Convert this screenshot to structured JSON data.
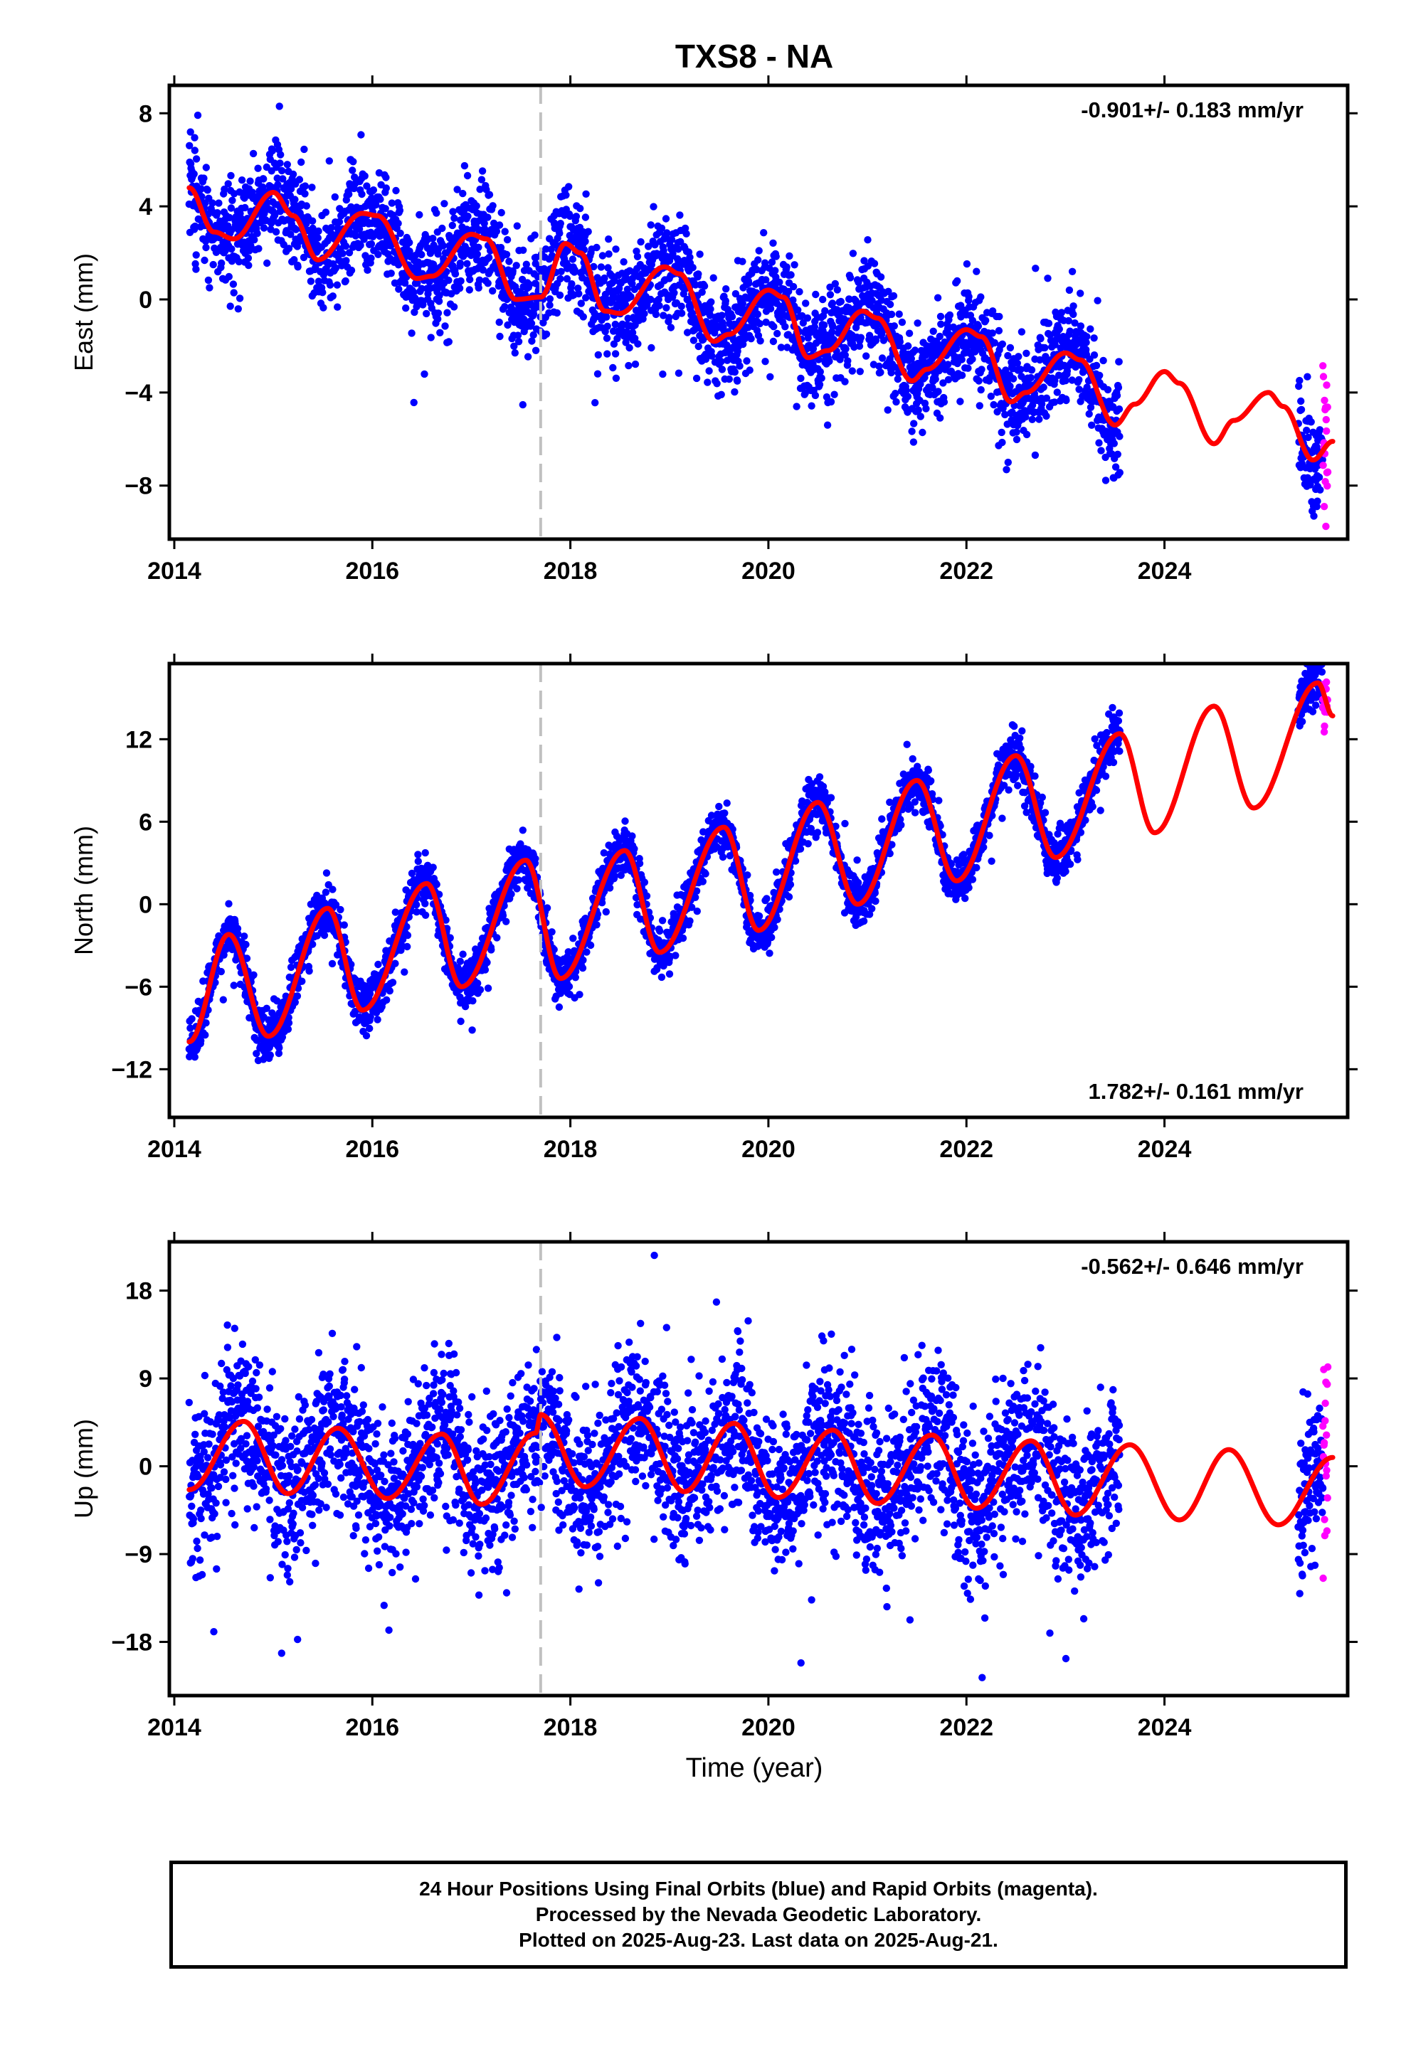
{
  "figure": {
    "title": "TXS8 - NA",
    "xlabel": "Time (year)",
    "caption_lines": [
      "24 Hour Positions Using Final Orbits (blue) and Rapid Orbits (magenta).",
      "Processed by the Nevada Geodetic Laboratory.",
      "Plotted on 2025-Aug-23. Last data on 2025-Aug-21."
    ],
    "colors": {
      "final_orbits": "#0000ff",
      "rapid_orbits": "#ff00ff",
      "model_fit": "#ff0000",
      "equipment_change_line": "#c0c0c0",
      "axes": "#000000"
    }
  },
  "chart_data": [
    {
      "type": "scatter",
      "panel": "east",
      "ylabel": "East (mm)",
      "rate_annotation": "-0.901+/- 0.183 mm/yr",
      "rate_position": "top-right",
      "xlim": [
        2013.95,
        2025.85
      ],
      "ylim": [
        -10.3,
        9.2
      ],
      "xticks": [
        2014,
        2016,
        2018,
        2020,
        2022,
        2024
      ],
      "yticks": [
        8,
        4,
        0,
        -4,
        -8
      ],
      "ytick_labels": [
        "8",
        "4",
        "0",
        "−4",
        "−8"
      ],
      "grid": false,
      "equipment_change_year": 2017.7,
      "rate_mm_per_yr": -0.901,
      "fit": {
        "t0": 2019.75,
        "offset": -0.4,
        "annual": [
          0.8,
          1.25
        ],
        "semiannual": [
          0.35,
          0.25
        ],
        "noise": 1.1,
        "knots": [
          [
            2014.15,
            4.8
          ],
          [
            2014.4,
            2.9
          ],
          [
            2014.6,
            2.6
          ],
          [
            2015.0,
            4.6
          ],
          [
            2015.2,
            3.6
          ],
          [
            2015.45,
            1.7
          ],
          [
            2015.9,
            3.7
          ],
          [
            2016.05,
            3.6
          ],
          [
            2016.45,
            0.9
          ],
          [
            2016.6,
            1.0
          ],
          [
            2017.0,
            2.8
          ],
          [
            2017.15,
            2.6
          ],
          [
            2017.45,
            0.0
          ],
          [
            2017.7,
            0.1
          ],
          [
            2017.95,
            2.4
          ],
          [
            2018.1,
            2.0
          ],
          [
            2018.35,
            -0.5
          ],
          [
            2018.5,
            -0.6
          ],
          [
            2018.95,
            1.4
          ],
          [
            2019.1,
            1.1
          ],
          [
            2019.45,
            -1.8
          ],
          [
            2019.6,
            -1.5
          ],
          [
            2020.0,
            0.4
          ],
          [
            2020.15,
            0.1
          ],
          [
            2020.4,
            -2.5
          ],
          [
            2020.6,
            -2.2
          ],
          [
            2020.95,
            -0.5
          ],
          [
            2021.1,
            -0.8
          ],
          [
            2021.45,
            -3.5
          ],
          [
            2021.6,
            -3.0
          ],
          [
            2022.0,
            -1.3
          ],
          [
            2022.15,
            -1.6
          ],
          [
            2022.45,
            -4.4
          ],
          [
            2022.6,
            -4.0
          ],
          [
            2023.0,
            -2.3
          ],
          [
            2023.15,
            -2.6
          ],
          [
            2023.5,
            -5.4
          ],
          [
            2023.7,
            -4.5
          ],
          [
            2024.0,
            -3.1
          ],
          [
            2024.15,
            -3.6
          ],
          [
            2024.5,
            -6.2
          ],
          [
            2024.7,
            -5.2
          ],
          [
            2025.05,
            -4.0
          ],
          [
            2025.2,
            -4.6
          ],
          [
            2025.5,
            -6.9
          ],
          [
            2025.7,
            -6.1
          ]
        ]
      }
    },
    {
      "type": "scatter",
      "panel": "north",
      "ylabel": "North (mm)",
      "rate_annotation": "1.782+/- 0.161 mm/yr",
      "rate_position": "bottom-right",
      "xlim": [
        2013.95,
        2025.85
      ],
      "ylim": [
        -15.5,
        17.5
      ],
      "xticks": [
        2014,
        2016,
        2018,
        2020,
        2022,
        2024
      ],
      "yticks": [
        12,
        6,
        0,
        -6,
        -12
      ],
      "ytick_labels": [
        "12",
        "6",
        "0",
        "−6",
        "−12"
      ],
      "grid": false,
      "equipment_change_year": 2017.7,
      "rate_mm_per_yr": 1.782,
      "fit": {
        "t0": 2019.75,
        "offset": 0.0,
        "annual": [
          -5.8,
          2.7
        ],
        "semiannual": [
          0.0,
          0.0
        ],
        "noise": 0.9,
        "knots": [
          [
            2014.15,
            -10.0
          ],
          [
            2014.55,
            -2.2
          ],
          [
            2014.95,
            -9.6
          ],
          [
            2015.55,
            -0.3
          ],
          [
            2015.9,
            -7.7
          ],
          [
            2016.55,
            1.5
          ],
          [
            2016.9,
            -6.0
          ],
          [
            2017.55,
            3.2
          ],
          [
            2017.9,
            -5.4
          ],
          [
            2018.55,
            3.9
          ],
          [
            2018.9,
            -3.5
          ],
          [
            2019.55,
            5.6
          ],
          [
            2019.9,
            -1.9
          ],
          [
            2020.5,
            7.4
          ],
          [
            2020.9,
            0.0
          ],
          [
            2021.5,
            9.0
          ],
          [
            2021.9,
            1.7
          ],
          [
            2022.5,
            10.8
          ],
          [
            2022.9,
            3.4
          ],
          [
            2023.55,
            12.4
          ],
          [
            2023.9,
            5.2
          ],
          [
            2024.5,
            14.4
          ],
          [
            2024.9,
            7.0
          ],
          [
            2025.55,
            16.1
          ],
          [
            2025.7,
            13.7
          ]
        ]
      }
    },
    {
      "type": "scatter",
      "panel": "up",
      "ylabel": "Up (mm)",
      "rate_annotation": "-0.562+/- 0.646 mm/yr",
      "rate_position": "top-right",
      "xlim": [
        2013.95,
        2025.85
      ],
      "ylim": [
        -23.5,
        23
      ],
      "xticks": [
        2014,
        2016,
        2018,
        2020,
        2022,
        2024
      ],
      "xtick_labels": [
        "2014",
        "2016",
        "2018",
        "2020",
        "2022",
        "2024"
      ],
      "yticks": [
        18,
        9,
        0,
        -9,
        -18
      ],
      "ytick_labels": [
        "18",
        "9",
        "0",
        "−9",
        "−18"
      ],
      "grid": false,
      "equipment_change_year": 2017.7,
      "rate_mm_per_yr": -0.562,
      "fit": {
        "t0": 2019.75,
        "offset": 0.0,
        "annual": [
          -1.5,
          -4.0
        ],
        "semiannual": [
          0.0,
          0.0
        ],
        "noise": 4.0,
        "knots": [
          [
            2014.15,
            -2.4
          ],
          [
            2014.7,
            4.6
          ],
          [
            2015.15,
            -2.8
          ],
          [
            2015.65,
            3.9
          ],
          [
            2016.15,
            -3.3
          ],
          [
            2016.7,
            3.3
          ],
          [
            2017.1,
            -3.9
          ],
          [
            2017.65,
            3.4
          ],
          [
            2017.7,
            5.3
          ],
          [
            2018.15,
            -2.1
          ],
          [
            2018.7,
            4.9
          ],
          [
            2019.15,
            -2.6
          ],
          [
            2019.65,
            4.4
          ],
          [
            2020.1,
            -3.2
          ],
          [
            2020.65,
            3.7
          ],
          [
            2021.1,
            -3.8
          ],
          [
            2021.65,
            3.2
          ],
          [
            2022.1,
            -4.3
          ],
          [
            2022.65,
            2.6
          ],
          [
            2023.1,
            -5.0
          ],
          [
            2023.65,
            2.2
          ],
          [
            2024.15,
            -5.5
          ],
          [
            2024.65,
            1.7
          ],
          [
            2025.15,
            -6.0
          ],
          [
            2025.7,
            0.9
          ]
        ]
      }
    }
  ],
  "data_span": {
    "final_orbits": [
      [
        2014.15,
        2023.55
      ],
      [
        2025.35,
        2025.6
      ]
    ],
    "rapid_orbits": [
      2025.6,
      2025.65
    ]
  }
}
